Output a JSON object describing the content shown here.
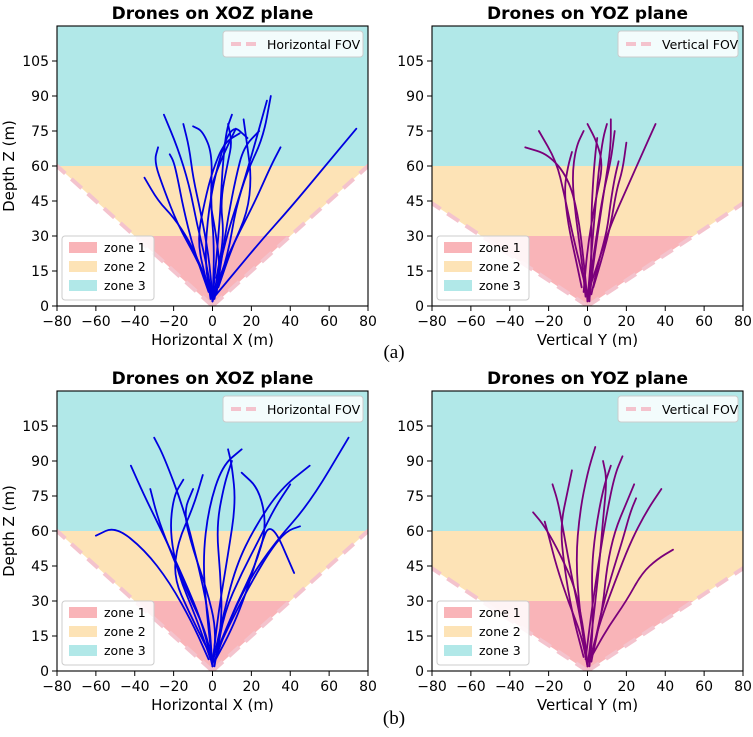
{
  "colors": {
    "zone1": "#f9b4b8",
    "zone2": "#fde3b6",
    "zone3": "#b1e8e8",
    "fov_line": "#f4c3cd",
    "drone_xoz": "#0000e0",
    "drone_yoz": "#7a007a"
  },
  "captions": [
    "(a)",
    "(b)"
  ],
  "chart_data": [
    {
      "type": "line",
      "title": "Drones on XOZ plane",
      "xlabel": "Horizontal X (m)",
      "ylabel": "Depth Z (m)",
      "xlim": [
        -80,
        80
      ],
      "ylim": [
        0,
        120
      ],
      "xticks": [
        "−80",
        "−60",
        "−40",
        "−20",
        "0",
        "20",
        "40",
        "60",
        "80"
      ],
      "yticks": [
        "0",
        "15",
        "30",
        "45",
        "60",
        "75",
        "90",
        "105"
      ],
      "fov_half_slope": 0.75,
      "zones": [
        {
          "label": "zone 1",
          "zmax": 30
        },
        {
          "label": "zone 2",
          "zmax": 60
        },
        {
          "label": "zone 3",
          "zmax": 120
        }
      ],
      "fov_label": "Horizontal FOV",
      "legend_fov_loc": "top-right",
      "legend_zones_loc": "lower-left",
      "series_style": "drone_xoz",
      "series": [
        {
          "x": [
            0,
            3,
            8,
            15,
            22,
            28
          ],
          "y": [
            2,
            15,
            32,
            50,
            70,
            88
          ]
        },
        {
          "x": [
            0,
            -3,
            -8,
            -12,
            -18,
            -25
          ],
          "y": [
            2,
            18,
            35,
            52,
            68,
            82
          ]
        },
        {
          "x": [
            0,
            2,
            4,
            5,
            7,
            10
          ],
          "y": [
            3,
            20,
            40,
            58,
            75,
            82
          ]
        },
        {
          "x": [
            1,
            6,
            14,
            22,
            30,
            35
          ],
          "y": [
            5,
            18,
            32,
            45,
            60,
            68
          ]
        },
        {
          "x": [
            0,
            12,
            25,
            40,
            58,
            74
          ],
          "y": [
            3,
            15,
            28,
            42,
            60,
            76
          ]
        },
        {
          "x": [
            -1,
            -4,
            -2,
            3,
            10,
            18
          ],
          "y": [
            3,
            20,
            42,
            62,
            78,
            72
          ]
        },
        {
          "x": [
            0,
            -8,
            -18,
            -25,
            -30,
            -28
          ],
          "y": [
            5,
            20,
            35,
            50,
            62,
            68
          ]
        },
        {
          "x": [
            2,
            5,
            8,
            12,
            16,
            24
          ],
          "y": [
            5,
            22,
            38,
            55,
            68,
            75
          ]
        },
        {
          "x": [
            0,
            -2,
            -6,
            -10,
            -12,
            -15
          ],
          "y": [
            4,
            22,
            40,
            55,
            68,
            78
          ]
        },
        {
          "x": [
            1,
            4,
            2,
            -2,
            4,
            12
          ],
          "y": [
            3,
            15,
            30,
            48,
            62,
            76
          ]
        },
        {
          "x": [
            0,
            8,
            12,
            18,
            26,
            30
          ],
          "y": [
            2,
            22,
            42,
            58,
            72,
            90
          ]
        },
        {
          "x": [
            -2,
            -10,
            -15,
            -18,
            -20,
            -22
          ],
          "y": [
            6,
            25,
            42,
            55,
            62,
            65
          ]
        },
        {
          "x": [
            0,
            1,
            -1,
            0,
            -5,
            -10
          ],
          "y": [
            2,
            25,
            45,
            65,
            75,
            77
          ]
        },
        {
          "x": [
            3,
            10,
            18,
            20,
            18,
            16
          ],
          "y": [
            8,
            25,
            40,
            55,
            68,
            80
          ]
        },
        {
          "x": [
            0,
            -5,
            -12,
            -20,
            -28,
            -35
          ],
          "y": [
            3,
            15,
            28,
            38,
            45,
            55
          ]
        },
        {
          "x": [
            -3,
            -8,
            -4,
            0,
            6,
            14
          ],
          "y": [
            10,
            28,
            45,
            58,
            70,
            74
          ]
        },
        {
          "x": [
            2,
            6,
            4,
            8,
            10,
            8
          ],
          "y": [
            12,
            30,
            45,
            62,
            70,
            78
          ]
        }
      ]
    },
    {
      "type": "line",
      "title": "Drones on YOZ plane",
      "xlabel": "Vertical Y (m)",
      "ylabel": "",
      "xlim": [
        -80,
        80
      ],
      "ylim": [
        0,
        120
      ],
      "xticks": [
        "−80",
        "−60",
        "−40",
        "−20",
        "0",
        "20",
        "40",
        "60",
        "80"
      ],
      "yticks": [
        "0",
        "15",
        "30",
        "45",
        "60",
        "75",
        "90",
        "105"
      ],
      "fov_half_slope": 0.55,
      "zones": [
        {
          "label": "zone 1",
          "zmax": 30
        },
        {
          "label": "zone 2",
          "zmax": 60
        },
        {
          "label": "zone 3",
          "zmax": 120
        }
      ],
      "fov_label": "Vertical FOV",
      "legend_fov_loc": "top-right",
      "legend_zones_loc": "lower-left",
      "series_style": "drone_yoz",
      "series": [
        {
          "x": [
            0,
            2,
            5,
            8,
            12,
            14
          ],
          "y": [
            2,
            15,
            32,
            48,
            62,
            75
          ]
        },
        {
          "x": [
            0,
            -2,
            -5,
            -10,
            -20,
            -32
          ],
          "y": [
            2,
            20,
            40,
            55,
            65,
            68
          ]
        },
        {
          "x": [
            1,
            3,
            6,
            9,
            12,
            12
          ],
          "y": [
            3,
            18,
            35,
            52,
            68,
            80
          ]
        },
        {
          "x": [
            0,
            6,
            12,
            20,
            28,
            35
          ],
          "y": [
            5,
            20,
            35,
            50,
            65,
            78
          ]
        },
        {
          "x": [
            -1,
            -3,
            -6,
            -8,
            -6,
            -2
          ],
          "y": [
            4,
            20,
            38,
            55,
            68,
            75
          ]
        },
        {
          "x": [
            0,
            2,
            4,
            6,
            8,
            10
          ],
          "y": [
            3,
            22,
            42,
            60,
            72,
            78
          ]
        },
        {
          "x": [
            2,
            6,
            10,
            12,
            14,
            16
          ],
          "y": [
            5,
            20,
            32,
            45,
            55,
            62
          ]
        },
        {
          "x": [
            0,
            -4,
            -8,
            -12,
            -16,
            -25
          ],
          "y": [
            5,
            18,
            32,
            48,
            62,
            75
          ]
        },
        {
          "x": [
            -2,
            0,
            4,
            8,
            5,
            0
          ],
          "y": [
            6,
            25,
            45,
            60,
            70,
            78
          ]
        },
        {
          "x": [
            1,
            2,
            2,
            3,
            4,
            5
          ],
          "y": [
            2,
            20,
            40,
            55,
            65,
            72
          ]
        },
        {
          "x": [
            3,
            8,
            12,
            15,
            18,
            20
          ],
          "y": [
            8,
            22,
            35,
            50,
            58,
            70
          ]
        },
        {
          "x": [
            -3,
            -6,
            -10,
            -12,
            -10,
            -8
          ],
          "y": [
            8,
            20,
            35,
            50,
            60,
            66
          ]
        }
      ]
    },
    {
      "type": "line",
      "title": "Drones on XOZ plane",
      "xlabel": "Horizontal X (m)",
      "ylabel": "Depth Z (m)",
      "xlim": [
        -80,
        80
      ],
      "ylim": [
        0,
        120
      ],
      "xticks": [
        "−80",
        "−60",
        "−40",
        "−20",
        "0",
        "20",
        "40",
        "60",
        "80"
      ],
      "yticks": [
        "0",
        "15",
        "30",
        "45",
        "60",
        "75",
        "90",
        "105"
      ],
      "fov_half_slope": 0.75,
      "zones": [
        {
          "label": "zone 1",
          "zmax": 30
        },
        {
          "label": "zone 2",
          "zmax": 60
        },
        {
          "label": "zone 3",
          "zmax": 120
        }
      ],
      "fov_label": "Horizontal FOV",
      "legend_fov_loc": "top-right",
      "legend_zones_loc": "lower-left",
      "series_style": "drone_xoz",
      "series": [
        {
          "x": [
            0,
            -5,
            -15,
            -25,
            -35,
            -42
          ],
          "y": [
            2,
            20,
            40,
            58,
            75,
            88
          ]
        },
        {
          "x": [
            0,
            5,
            12,
            22,
            35,
            50
          ],
          "y": [
            3,
            22,
            45,
            62,
            78,
            88
          ]
        },
        {
          "x": [
            1,
            8,
            18,
            32,
            50,
            70
          ],
          "y": [
            4,
            20,
            38,
            55,
            72,
            100
          ]
        },
        {
          "x": [
            0,
            -2,
            -8,
            -15,
            -25,
            -30
          ],
          "y": [
            2,
            25,
            48,
            70,
            92,
            100
          ]
        },
        {
          "x": [
            0,
            3,
            8,
            12,
            10,
            8
          ],
          "y": [
            3,
            25,
            50,
            72,
            88,
            95
          ]
        },
        {
          "x": [
            -2,
            -10,
            -22,
            -35,
            -50,
            -60
          ],
          "y": [
            5,
            20,
            38,
            52,
            62,
            58
          ]
        },
        {
          "x": [
            2,
            10,
            20,
            30,
            38,
            45
          ],
          "y": [
            8,
            22,
            38,
            52,
            60,
            62
          ]
        },
        {
          "x": [
            0,
            -3,
            -5,
            -2,
            5,
            15
          ],
          "y": [
            3,
            25,
            48,
            70,
            88,
            95
          ]
        },
        {
          "x": [
            1,
            5,
            4,
            2,
            6,
            10
          ],
          "y": [
            2,
            22,
            42,
            62,
            80,
            90
          ]
        },
        {
          "x": [
            -1,
            -8,
            -18,
            -22,
            -20,
            -15
          ],
          "y": [
            5,
            22,
            42,
            60,
            75,
            82
          ]
        },
        {
          "x": [
            3,
            12,
            22,
            28,
            24,
            15
          ],
          "y": [
            10,
            28,
            45,
            62,
            78,
            85
          ]
        },
        {
          "x": [
            0,
            -4,
            -12,
            -20,
            -28,
            -32
          ],
          "y": [
            4,
            18,
            32,
            48,
            65,
            78
          ]
        },
        {
          "x": [
            2,
            6,
            15,
            25,
            32,
            40
          ],
          "y": [
            6,
            25,
            42,
            58,
            70,
            80
          ]
        },
        {
          "x": [
            -3,
            -12,
            -20,
            -18,
            -10,
            -5
          ],
          "y": [
            10,
            25,
            40,
            55,
            70,
            84
          ]
        },
        {
          "x": [
            0,
            2,
            -3,
            -10,
            -15,
            -10
          ],
          "y": [
            2,
            18,
            35,
            52,
            68,
            78
          ]
        },
        {
          "x": [
            1,
            10,
            18,
            24,
            30,
            42
          ],
          "y": [
            4,
            18,
            35,
            52,
            65,
            42
          ]
        }
      ]
    },
    {
      "type": "line",
      "title": "Drones on YOZ plane",
      "xlabel": "Vertical Y (m)",
      "ylabel": "",
      "xlim": [
        -80,
        80
      ],
      "ylim": [
        0,
        120
      ],
      "xticks": [
        "−80",
        "−60",
        "−40",
        "−20",
        "0",
        "20",
        "40",
        "60",
        "80"
      ],
      "yticks": [
        "0",
        "15",
        "30",
        "45",
        "60",
        "75",
        "90",
        "105"
      ],
      "fov_half_slope": 0.55,
      "zones": [
        {
          "label": "zone 1",
          "zmax": 30
        },
        {
          "label": "zone 2",
          "zmax": 60
        },
        {
          "label": "zone 3",
          "zmax": 120
        }
      ],
      "fov_label": "Vertical FOV",
      "legend_fov_loc": "top-right",
      "legend_zones_loc": "lower-left",
      "series_style": "drone_yoz",
      "series": [
        {
          "x": [
            0,
            3,
            6,
            8,
            10,
            8
          ],
          "y": [
            2,
            22,
            45,
            65,
            82,
            90
          ]
        },
        {
          "x": [
            0,
            -3,
            -8,
            -12,
            -15,
            -18
          ],
          "y": [
            2,
            20,
            40,
            58,
            72,
            80
          ]
        },
        {
          "x": [
            1,
            6,
            14,
            22,
            30,
            38
          ],
          "y": [
            4,
            20,
            38,
            55,
            68,
            78
          ]
        },
        {
          "x": [
            0,
            -2,
            -6,
            -14,
            -22,
            -28
          ],
          "y": [
            3,
            18,
            35,
            50,
            62,
            68
          ]
        },
        {
          "x": [
            -1,
            2,
            6,
            10,
            14,
            18
          ],
          "y": [
            5,
            25,
            48,
            68,
            84,
            92
          ]
        },
        {
          "x": [
            2,
            10,
            20,
            28,
            36,
            44
          ],
          "y": [
            6,
            18,
            30,
            42,
            48,
            52
          ]
        },
        {
          "x": [
            0,
            -4,
            -6,
            -4,
            0,
            4
          ],
          "y": [
            3,
            25,
            48,
            68,
            85,
            96
          ]
        },
        {
          "x": [
            1,
            3,
            2,
            4,
            8,
            12
          ],
          "y": [
            2,
            20,
            42,
            60,
            78,
            88
          ]
        },
        {
          "x": [
            -2,
            -8,
            -12,
            -14,
            -10,
            -8
          ],
          "y": [
            6,
            25,
            45,
            62,
            78,
            86
          ]
        },
        {
          "x": [
            3,
            8,
            10,
            14,
            20,
            24
          ],
          "y": [
            8,
            28,
            45,
            60,
            72,
            80
          ]
        },
        {
          "x": [
            0,
            -3,
            -10,
            -16,
            -20,
            -22
          ],
          "y": [
            2,
            15,
            30,
            45,
            58,
            64
          ]
        },
        {
          "x": [
            2,
            6,
            12,
            18,
            22,
            25
          ],
          "y": [
            4,
            22,
            40,
            56,
            68,
            74
          ]
        }
      ]
    }
  ]
}
